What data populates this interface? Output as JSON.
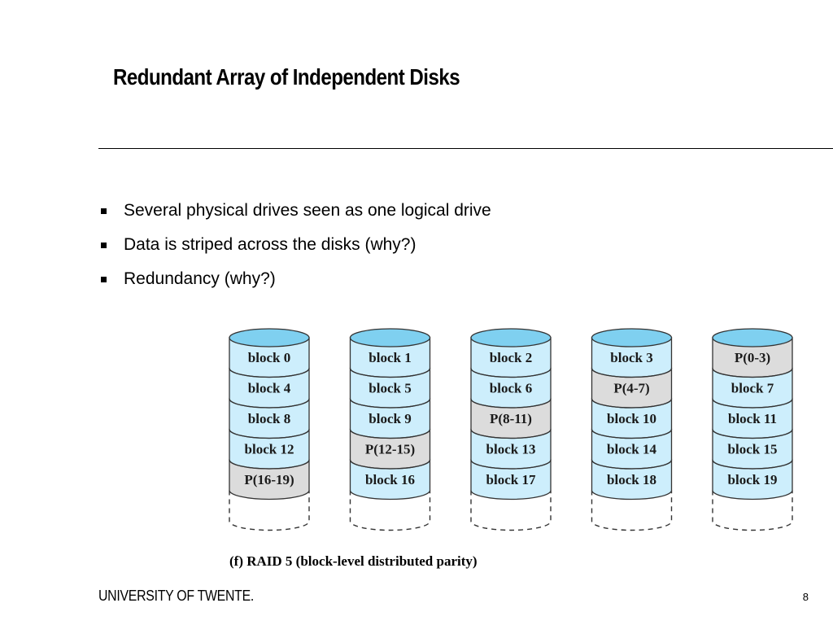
{
  "slide": {
    "title": "Redundant Array of Independent Disks",
    "bullets": [
      "Several physical drives seen as one logical drive",
      "Data is striped across the disks (why?)",
      "Redundancy (why?)"
    ],
    "footer_logo": "UNIVERSITY OF TWENTE.",
    "page_number": "8"
  },
  "diagram": {
    "caption": "(f) RAID 5 (block-level distributed parity)",
    "colors": {
      "data_block": "#cdeefc",
      "parity_block": "#dcdcdc",
      "disk_top": "#7fd0f0",
      "outline": "#333333"
    },
    "disks": [
      {
        "blocks": [
          {
            "label": "block 0",
            "parity": false
          },
          {
            "label": "block 4",
            "parity": false
          },
          {
            "label": "block 8",
            "parity": false
          },
          {
            "label": "block 12",
            "parity": false
          },
          {
            "label": "P(16-19)",
            "parity": true
          }
        ]
      },
      {
        "blocks": [
          {
            "label": "block 1",
            "parity": false
          },
          {
            "label": "block 5",
            "parity": false
          },
          {
            "label": "block 9",
            "parity": false
          },
          {
            "label": "P(12-15)",
            "parity": true
          },
          {
            "label": "block 16",
            "parity": false
          }
        ]
      },
      {
        "blocks": [
          {
            "label": "block 2",
            "parity": false
          },
          {
            "label": "block 6",
            "parity": false
          },
          {
            "label": "P(8-11)",
            "parity": true
          },
          {
            "label": "block 13",
            "parity": false
          },
          {
            "label": "block 17",
            "parity": false
          }
        ]
      },
      {
        "blocks": [
          {
            "label": "block 3",
            "parity": false
          },
          {
            "label": "P(4-7)",
            "parity": true
          },
          {
            "label": "block 10",
            "parity": false
          },
          {
            "label": "block 14",
            "parity": false
          },
          {
            "label": "block 18",
            "parity": false
          }
        ]
      },
      {
        "blocks": [
          {
            "label": "P(0-3)",
            "parity": true
          },
          {
            "label": "block 7",
            "parity": false
          },
          {
            "label": "block 11",
            "parity": false
          },
          {
            "label": "block 15",
            "parity": false
          },
          {
            "label": "block 19",
            "parity": false
          }
        ]
      }
    ]
  }
}
